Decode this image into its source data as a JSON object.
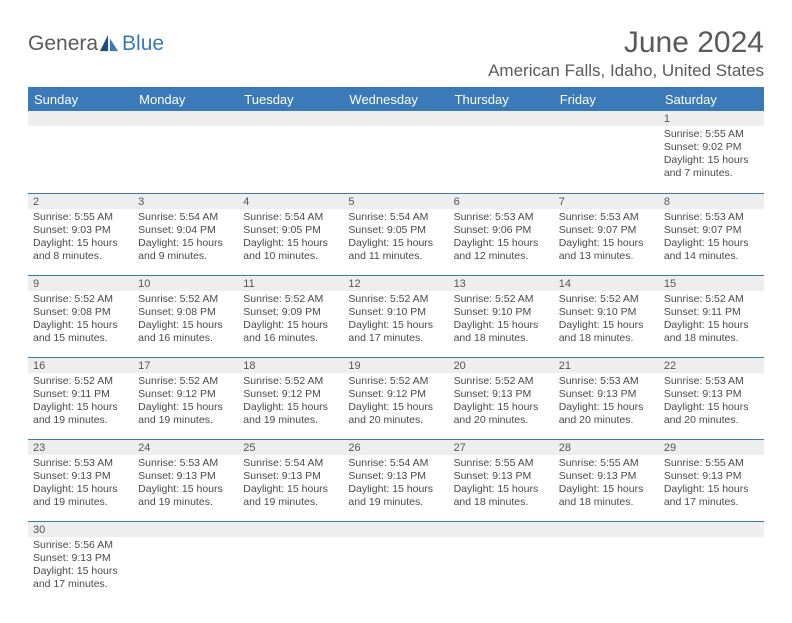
{
  "logo": {
    "text1": "Genera",
    "text2": "Blue"
  },
  "title": "June 2024",
  "location": "American Falls, Idaho, United States",
  "colors": {
    "header_bg": "#3a7ab8",
    "header_fg": "#ffffff",
    "daynum_bg": "#eeeeee",
    "text": "#4a4a4a",
    "border": "#3a7ab8"
  },
  "day_headers": [
    "Sunday",
    "Monday",
    "Tuesday",
    "Wednesday",
    "Thursday",
    "Friday",
    "Saturday"
  ],
  "weeks": [
    [
      null,
      null,
      null,
      null,
      null,
      null,
      {
        "n": "1",
        "sunrise": "5:55 AM",
        "sunset": "9:02 PM",
        "daylight": "15 hours and 7 minutes."
      }
    ],
    [
      {
        "n": "2",
        "sunrise": "5:55 AM",
        "sunset": "9:03 PM",
        "daylight": "15 hours and 8 minutes."
      },
      {
        "n": "3",
        "sunrise": "5:54 AM",
        "sunset": "9:04 PM",
        "daylight": "15 hours and 9 minutes."
      },
      {
        "n": "4",
        "sunrise": "5:54 AM",
        "sunset": "9:05 PM",
        "daylight": "15 hours and 10 minutes."
      },
      {
        "n": "5",
        "sunrise": "5:54 AM",
        "sunset": "9:05 PM",
        "daylight": "15 hours and 11 minutes."
      },
      {
        "n": "6",
        "sunrise": "5:53 AM",
        "sunset": "9:06 PM",
        "daylight": "15 hours and 12 minutes."
      },
      {
        "n": "7",
        "sunrise": "5:53 AM",
        "sunset": "9:07 PM",
        "daylight": "15 hours and 13 minutes."
      },
      {
        "n": "8",
        "sunrise": "5:53 AM",
        "sunset": "9:07 PM",
        "daylight": "15 hours and 14 minutes."
      }
    ],
    [
      {
        "n": "9",
        "sunrise": "5:52 AM",
        "sunset": "9:08 PM",
        "daylight": "15 hours and 15 minutes."
      },
      {
        "n": "10",
        "sunrise": "5:52 AM",
        "sunset": "9:08 PM",
        "daylight": "15 hours and 16 minutes."
      },
      {
        "n": "11",
        "sunrise": "5:52 AM",
        "sunset": "9:09 PM",
        "daylight": "15 hours and 16 minutes."
      },
      {
        "n": "12",
        "sunrise": "5:52 AM",
        "sunset": "9:10 PM",
        "daylight": "15 hours and 17 minutes."
      },
      {
        "n": "13",
        "sunrise": "5:52 AM",
        "sunset": "9:10 PM",
        "daylight": "15 hours and 18 minutes."
      },
      {
        "n": "14",
        "sunrise": "5:52 AM",
        "sunset": "9:10 PM",
        "daylight": "15 hours and 18 minutes."
      },
      {
        "n": "15",
        "sunrise": "5:52 AM",
        "sunset": "9:11 PM",
        "daylight": "15 hours and 18 minutes."
      }
    ],
    [
      {
        "n": "16",
        "sunrise": "5:52 AM",
        "sunset": "9:11 PM",
        "daylight": "15 hours and 19 minutes."
      },
      {
        "n": "17",
        "sunrise": "5:52 AM",
        "sunset": "9:12 PM",
        "daylight": "15 hours and 19 minutes."
      },
      {
        "n": "18",
        "sunrise": "5:52 AM",
        "sunset": "9:12 PM",
        "daylight": "15 hours and 19 minutes."
      },
      {
        "n": "19",
        "sunrise": "5:52 AM",
        "sunset": "9:12 PM",
        "daylight": "15 hours and 20 minutes."
      },
      {
        "n": "20",
        "sunrise": "5:52 AM",
        "sunset": "9:13 PM",
        "daylight": "15 hours and 20 minutes."
      },
      {
        "n": "21",
        "sunrise": "5:53 AM",
        "sunset": "9:13 PM",
        "daylight": "15 hours and 20 minutes."
      },
      {
        "n": "22",
        "sunrise": "5:53 AM",
        "sunset": "9:13 PM",
        "daylight": "15 hours and 20 minutes."
      }
    ],
    [
      {
        "n": "23",
        "sunrise": "5:53 AM",
        "sunset": "9:13 PM",
        "daylight": "15 hours and 19 minutes."
      },
      {
        "n": "24",
        "sunrise": "5:53 AM",
        "sunset": "9:13 PM",
        "daylight": "15 hours and 19 minutes."
      },
      {
        "n": "25",
        "sunrise": "5:54 AM",
        "sunset": "9:13 PM",
        "daylight": "15 hours and 19 minutes."
      },
      {
        "n": "26",
        "sunrise": "5:54 AM",
        "sunset": "9:13 PM",
        "daylight": "15 hours and 19 minutes."
      },
      {
        "n": "27",
        "sunrise": "5:55 AM",
        "sunset": "9:13 PM",
        "daylight": "15 hours and 18 minutes."
      },
      {
        "n": "28",
        "sunrise": "5:55 AM",
        "sunset": "9:13 PM",
        "daylight": "15 hours and 18 minutes."
      },
      {
        "n": "29",
        "sunrise": "5:55 AM",
        "sunset": "9:13 PM",
        "daylight": "15 hours and 17 minutes."
      }
    ],
    [
      {
        "n": "30",
        "sunrise": "5:56 AM",
        "sunset": "9:13 PM",
        "daylight": "15 hours and 17 minutes."
      },
      null,
      null,
      null,
      null,
      null,
      null
    ]
  ],
  "labels": {
    "sunrise": "Sunrise:",
    "sunset": "Sunset:",
    "daylight": "Daylight:"
  }
}
